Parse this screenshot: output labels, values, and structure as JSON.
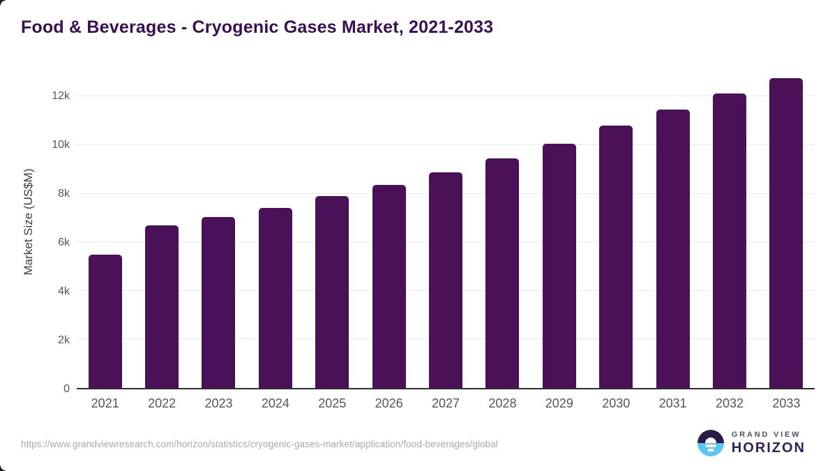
{
  "chart_data": {
    "type": "bar",
    "title": "Food & Beverages - Cryogenic Gases Market, 2021-2033",
    "categories": [
      "2021",
      "2022",
      "2023",
      "2024",
      "2025",
      "2026",
      "2027",
      "2028",
      "2029",
      "2030",
      "2031",
      "2032",
      "2033"
    ],
    "values": [
      5480,
      6680,
      7030,
      7400,
      7890,
      8370,
      8890,
      9450,
      10060,
      10800,
      11450,
      12120,
      12770
    ],
    "xlabel": "",
    "ylabel": "Market Size (US$M)",
    "ylim": [
      0,
      13100
    ],
    "yticks": [
      {
        "value": 0,
        "label": "0"
      },
      {
        "value": 2000,
        "label": "2k"
      },
      {
        "value": 4000,
        "label": "4k"
      },
      {
        "value": 6000,
        "label": "6k"
      },
      {
        "value": 8000,
        "label": "8k"
      },
      {
        "value": 10000,
        "label": "10k"
      },
      {
        "value": 12000,
        "label": "12k"
      }
    ],
    "grid": "horizontal",
    "legend": "none",
    "bar_color": "#4a1158"
  },
  "footer": {
    "source_url": "https://www.grandviewresearch.com/horizon/statistics/cryogenic-gases-market/application/food-beverages/global",
    "logo": {
      "line1": "GRAND VIEW",
      "line2": "HORIZON"
    }
  },
  "colors": {
    "bar": "#4a1158",
    "title": "#3a0f50",
    "axis_text": "#555555",
    "grid": "#e8e8e8",
    "axis_line": "#2e2e2e",
    "url": "#a9a9a9",
    "logo_dark": "#2c1a47",
    "logo_blue": "#5bc6f2",
    "logo_gray": "#52525e",
    "logo_purple": "#32205a"
  }
}
